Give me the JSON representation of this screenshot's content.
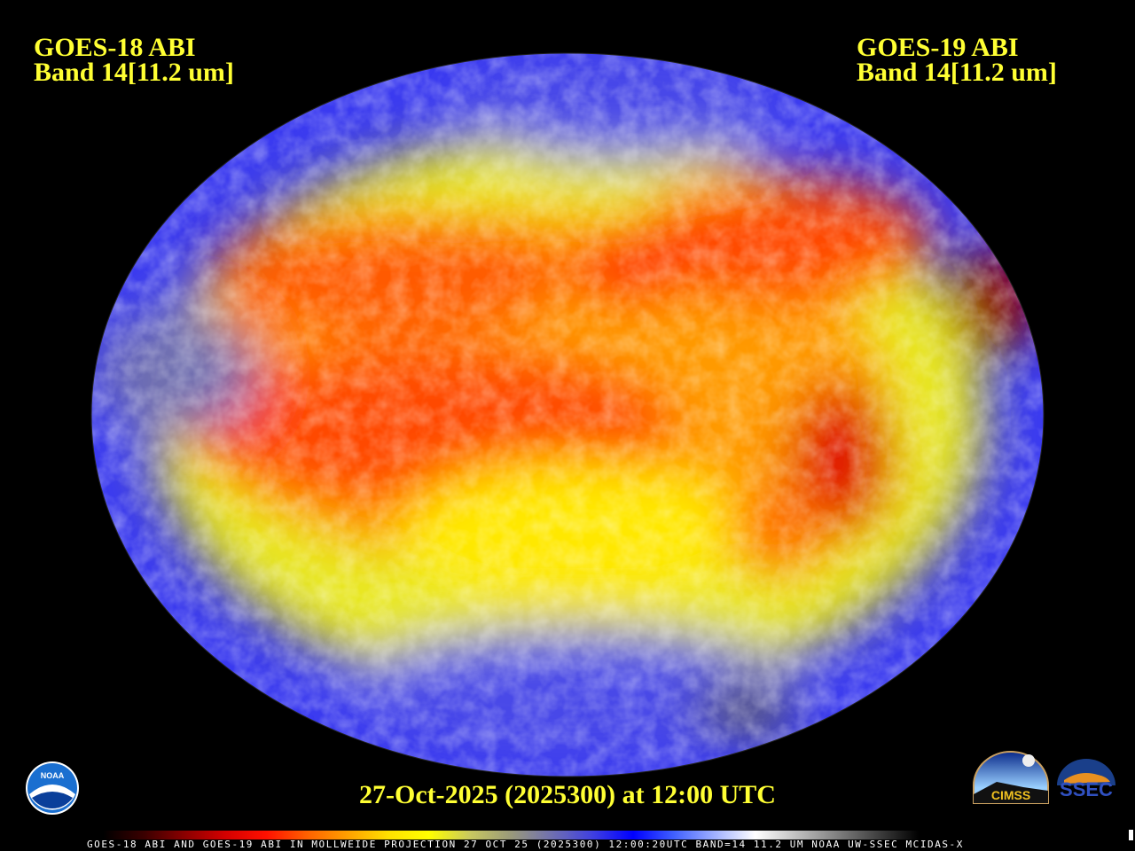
{
  "header": {
    "left": {
      "line1": "GOES-18 ABI",
      "line2": "Band 14[11.2 um]"
    },
    "right": {
      "line1": "GOES-19 ABI",
      "line2": "Band 14[11.2 um]"
    }
  },
  "timestamp": "27-Oct-2025 (2025300) at 12:00 UTC",
  "footer": "GOES-18 ABI AND GOES-19 ABI IN MOLLWEIDE PROJECTION 27 OCT 25 (2025300) 12:00:20UTC BAND=14 11.2 UM NOAA UW-SSEC MCIDAS-X",
  "projection": "Mollweide",
  "colorbar": [
    "#000000",
    "#3a0000",
    "#8a0000",
    "#d40000",
    "#ff1000",
    "#ff6000",
    "#ffa000",
    "#ffe000",
    "#ffff00",
    "#c8c860",
    "#9a9a7a",
    "#7070b0",
    "#4040e0",
    "#0000ff",
    "#4060ff",
    "#a0b0ff",
    "#ffffff",
    "#c0c0c0",
    "#808080",
    "#404040",
    "#000000"
  ],
  "logos": {
    "noaa": "NOAA",
    "cimss": "CIMSS",
    "ssec": "SSEC"
  }
}
